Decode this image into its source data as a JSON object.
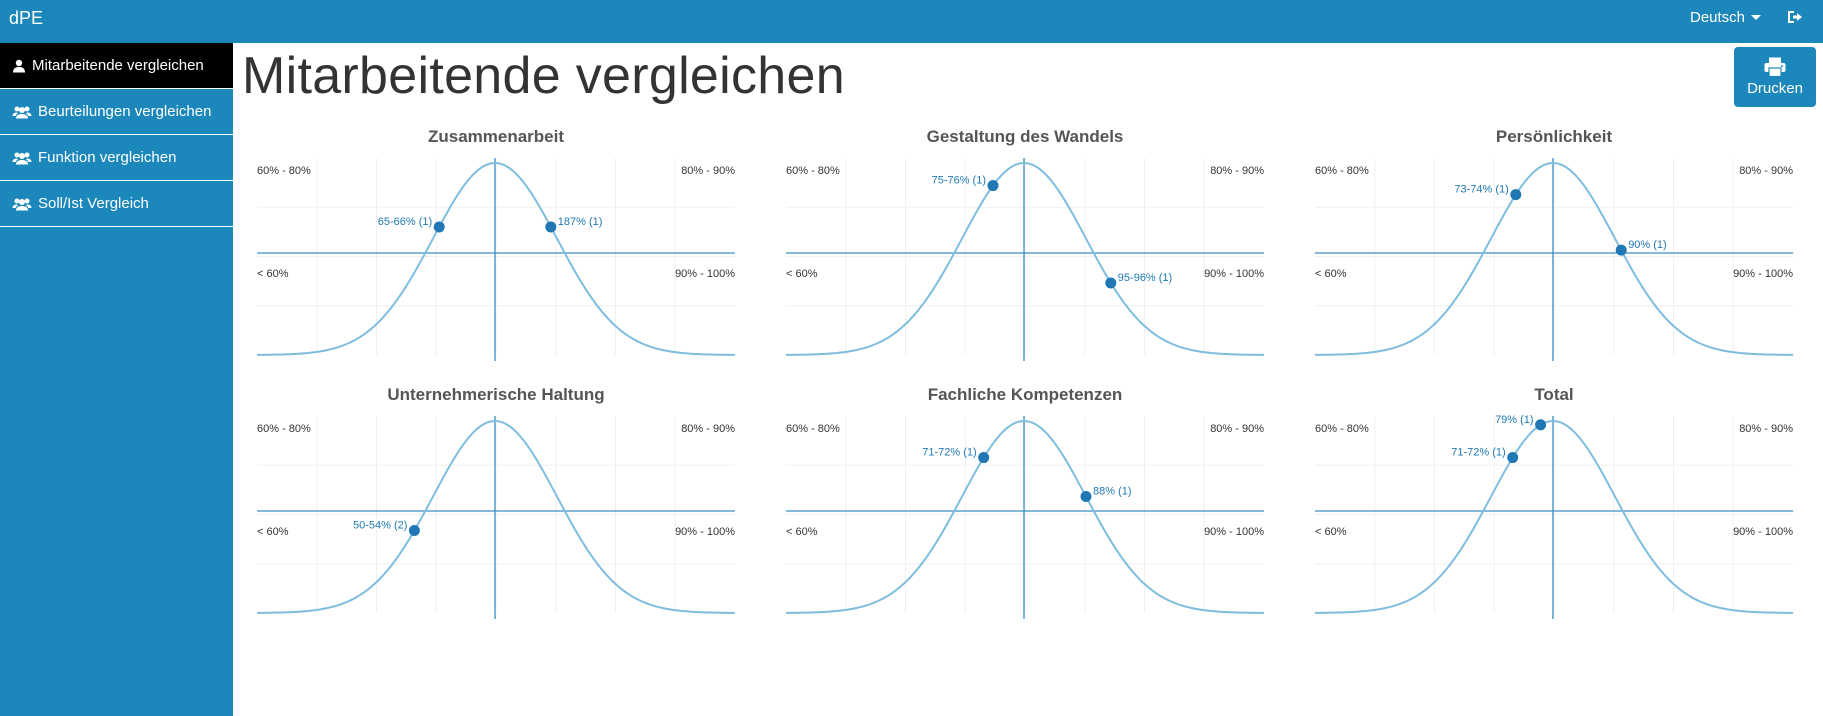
{
  "app": {
    "brand": "dPE"
  },
  "header": {
    "language": "Deutsch",
    "logout_icon": "sign-out-icon"
  },
  "sidebar": {
    "items": [
      {
        "label": "Mitarbeitende vergleichen",
        "icon": "user-icon",
        "active": true
      },
      {
        "label": "Beurteilungen vergleichen",
        "icon": "users-icon",
        "active": false
      },
      {
        "label": "Funktion vergleichen",
        "icon": "users-icon",
        "active": false
      },
      {
        "label": "Soll/Ist Vergleich",
        "icon": "users-icon",
        "active": false
      }
    ]
  },
  "page": {
    "title": "Mitarbeitende vergleichen",
    "print_label": "Drucken",
    "print_icon": "print-icon"
  },
  "colors": {
    "primary": "#1b87bb",
    "curve": "#7fbddf",
    "axis": "#3a8fc4",
    "point": "#1f78b4",
    "active": "#000000"
  },
  "chart_data": [
    {
      "type": "scatter",
      "title": "Zusammenarbeit",
      "quadrants": {
        "top_left": "60% - 80%",
        "top_right": "80% - 90%",
        "bottom_left": "< 60%",
        "bottom_right": "90% - 100%"
      },
      "points": [
        {
          "label": "65-66% (1)",
          "x": -0.9,
          "side": "left"
        },
        {
          "label": "187% (1)",
          "x": 0.9,
          "side": "right"
        }
      ]
    },
    {
      "type": "scatter",
      "title": "Gestaltung des Wandels",
      "quadrants": {
        "top_left": "60% - 80%",
        "top_right": "80% - 90%",
        "bottom_left": "< 60%",
        "bottom_right": "90% - 100%"
      },
      "points": [
        {
          "label": "75-76% (1)",
          "x": -0.5,
          "side": "left"
        },
        {
          "label": "95-96% (1)",
          "x": 1.4,
          "side": "right"
        }
      ]
    },
    {
      "type": "scatter",
      "title": "Persönlichkeit",
      "quadrants": {
        "top_left": "60% - 80%",
        "top_right": "80% - 90%",
        "bottom_left": "< 60%",
        "bottom_right": "90% - 100%"
      },
      "points": [
        {
          "label": "73-74% (1)",
          "x": -0.6,
          "side": "left"
        },
        {
          "label": "90% (1)",
          "x": 1.1,
          "side": "right"
        }
      ]
    },
    {
      "type": "scatter",
      "title": "Unternehmerische Haltung",
      "quadrants": {
        "top_left": "60% - 80%",
        "top_right": "80% - 90%",
        "bottom_left": "< 60%",
        "bottom_right": "90% - 100%"
      },
      "points": [
        {
          "label": "50-54% (2)",
          "x": -1.3,
          "side": "left"
        }
      ]
    },
    {
      "type": "scatter",
      "title": "Fachliche Kompetenzen",
      "quadrants": {
        "top_left": "60% - 80%",
        "top_right": "80% - 90%",
        "bottom_left": "< 60%",
        "bottom_right": "90% - 100%"
      },
      "points": [
        {
          "label": "71-72% (1)",
          "x": -0.65,
          "side": "left"
        },
        {
          "label": "88% (1)",
          "x": 1.0,
          "side": "right"
        }
      ]
    },
    {
      "type": "scatter",
      "title": "Total",
      "quadrants": {
        "top_left": "60% - 80%",
        "top_right": "80% - 90%",
        "bottom_left": "< 60%",
        "bottom_right": "90% - 100%"
      },
      "points": [
        {
          "label": "79% (1)",
          "x": -0.2,
          "side": "left"
        },
        {
          "label": "71-72% (1)",
          "x": -0.65,
          "side": "left"
        }
      ]
    }
  ]
}
